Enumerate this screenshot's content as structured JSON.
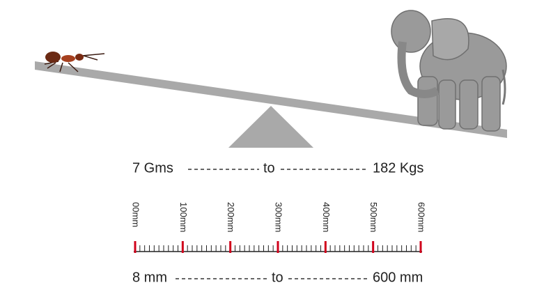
{
  "weight": {
    "from": "7 Gms",
    "to": "to",
    "until": "182 Kgs"
  },
  "ruler": {
    "labels": [
      "00mm",
      "100mm",
      "200mm",
      "300mm",
      "400mm",
      "500mm",
      "600mm"
    ]
  },
  "length": {
    "from": "8 mm",
    "to": "to",
    "until": "600 mm"
  }
}
